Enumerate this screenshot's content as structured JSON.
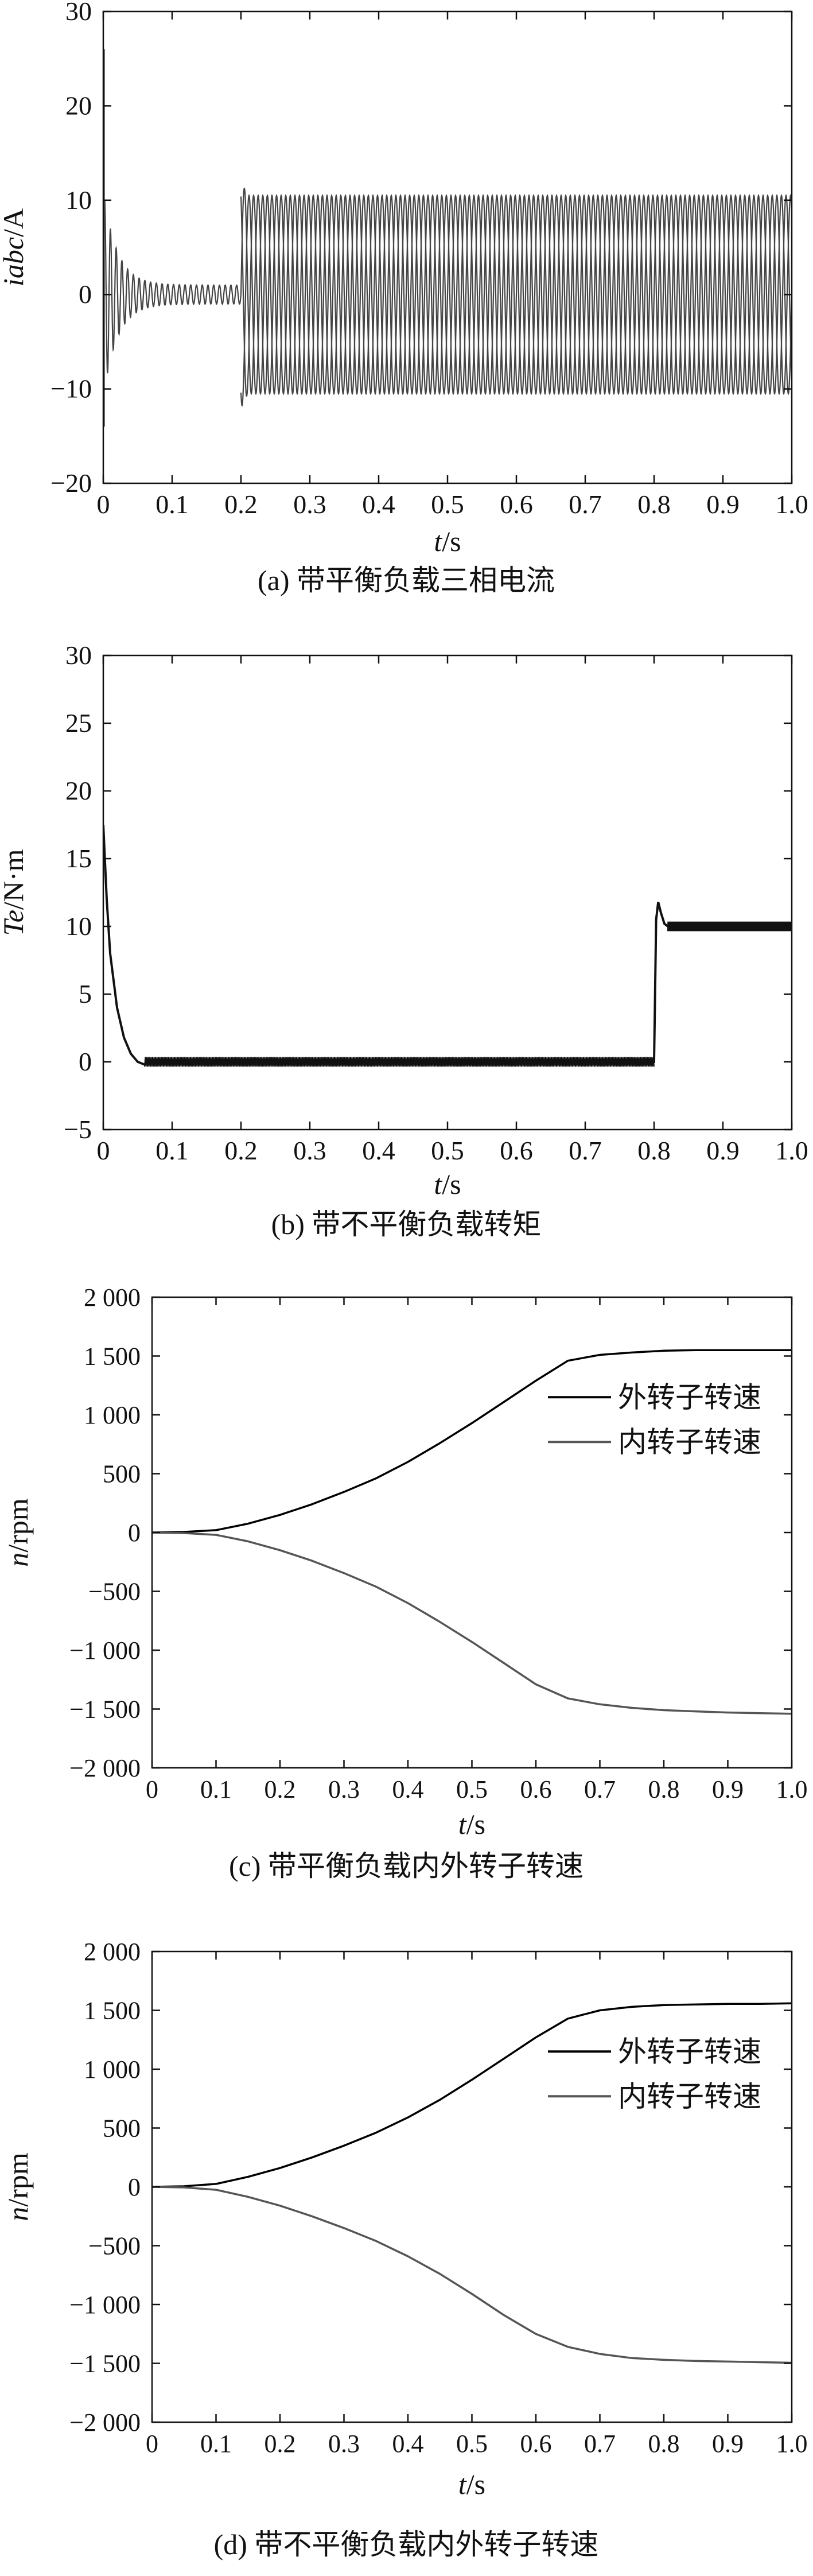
{
  "chart_data": [
    {
      "id": "a",
      "type": "line",
      "caption": "(a) 带平衡负载三相电流",
      "xlabel_var": "t",
      "xlabel_unit": "/s",
      "ylabel_var": "iabc",
      "ylabel_unit": "/A",
      "xlim": [
        0,
        1.0
      ],
      "ylim": [
        -20,
        30
      ],
      "xticks": [
        0,
        0.1,
        0.2,
        0.3,
        0.4,
        0.5,
        0.6,
        0.7,
        0.8,
        0.9,
        1.0
      ],
      "xtick_labels": [
        "0",
        "0.1",
        "0.2",
        "0.3",
        "0.4",
        "0.5",
        "0.6",
        "0.7",
        "0.8",
        "0.9",
        "1.0"
      ],
      "yticks": [
        -20,
        -10,
        0,
        10,
        20,
        30
      ],
      "ytick_labels": [
        "−20",
        "−10",
        "0",
        "10",
        "20",
        "30"
      ],
      "grid": false,
      "color": "#444444",
      "series": [
        {
          "kind": "oscillation",
          "segments": [
            {
              "x0": 0.0,
              "x1": 0.2,
              "amplitude_start": 10.0,
              "amplitude_end": 1.0,
              "decay_to": 0.02
            },
            {
              "x0": 0.2,
              "x1": 1.0,
              "amplitude_start": 10.5,
              "amplitude_end": 10.5,
              "overshoot": 12.0
            }
          ],
          "start_spike": [
            -14,
            26
          ],
          "frequency_hz": 120
        }
      ]
    },
    {
      "id": "b",
      "type": "line",
      "caption": "(b) 带不平衡负载转矩",
      "xlabel_var": "t",
      "xlabel_unit": "/s",
      "ylabel_var": "Te",
      "ylabel_unit": "/N·m",
      "xlim": [
        0,
        1.0
      ],
      "ylim": [
        -5,
        30
      ],
      "xticks": [
        0,
        0.1,
        0.2,
        0.3,
        0.4,
        0.5,
        0.6,
        0.7,
        0.8,
        0.9,
        1.0
      ],
      "xtick_labels": [
        "0",
        "0.1",
        "0.2",
        "0.3",
        "0.4",
        "0.5",
        "0.6",
        "0.7",
        "0.8",
        "0.9",
        "1.0"
      ],
      "yticks": [
        -5,
        0,
        5,
        10,
        15,
        20,
        25,
        30
      ],
      "ytick_labels": [
        "−5",
        "0",
        "5",
        "10",
        "15",
        "20",
        "25",
        "30"
      ],
      "grid": false,
      "color": "#111111",
      "series": [
        {
          "kind": "torque",
          "points": [
            [
              0.0,
              17.5
            ],
            [
              0.005,
              12.0
            ],
            [
              0.01,
              8.0
            ],
            [
              0.02,
              4.0
            ],
            [
              0.03,
              1.8
            ],
            [
              0.04,
              0.6
            ],
            [
              0.05,
              0.0
            ],
            [
              0.06,
              -0.2
            ],
            [
              0.07,
              0.0
            ],
            [
              0.8,
              0.0
            ],
            [
              0.803,
              10.5
            ],
            [
              0.806,
              11.8
            ],
            [
              0.81,
              11.0
            ],
            [
              0.815,
              10.2
            ],
            [
              0.82,
              10.0
            ],
            [
              1.0,
              10.0
            ]
          ],
          "ripple": 0.35
        }
      ]
    },
    {
      "id": "c",
      "type": "line",
      "caption": "(c) 带平衡负载内外转子转速",
      "xlabel_var": "t",
      "xlabel_unit": "/s",
      "ylabel_var": "n",
      "ylabel_unit": "/rpm",
      "xlim": [
        0,
        1.0
      ],
      "ylim": [
        -2000,
        2000
      ],
      "xticks": [
        0,
        0.1,
        0.2,
        0.3,
        0.4,
        0.5,
        0.6,
        0.7,
        0.8,
        0.9,
        1.0
      ],
      "xtick_labels": [
        "0",
        "0.1",
        "0.2",
        "0.3",
        "0.4",
        "0.5",
        "0.6",
        "0.7",
        "0.8",
        "0.9",
        "1.0"
      ],
      "yticks": [
        -2000,
        -1500,
        -1000,
        -500,
        0,
        500,
        1000,
        1500,
        2000
      ],
      "ytick_labels": [
        "−2 000",
        "−1 500",
        "−1 000",
        "−500",
        "0",
        "500",
        "1 000",
        "1 500",
        "2 000"
      ],
      "grid": false,
      "legend_position": "top-right",
      "series": [
        {
          "name": "外转子转速",
          "color": "#000000",
          "x": [
            0,
            0.05,
            0.1,
            0.15,
            0.2,
            0.25,
            0.3,
            0.35,
            0.4,
            0.45,
            0.5,
            0.55,
            0.6,
            0.65,
            0.7,
            0.75,
            0.8,
            0.85,
            0.9,
            0.95,
            1.0
          ],
          "y": [
            0,
            5,
            20,
            75,
            150,
            240,
            345,
            460,
            600,
            760,
            930,
            1110,
            1290,
            1460,
            1510,
            1530,
            1545,
            1550,
            1550,
            1550,
            1550
          ]
        },
        {
          "name": "内转子转速",
          "color": "#555555",
          "x": [
            0,
            0.05,
            0.1,
            0.15,
            0.2,
            0.25,
            0.3,
            0.35,
            0.4,
            0.45,
            0.5,
            0.55,
            0.6,
            0.65,
            0.7,
            0.75,
            0.8,
            0.85,
            0.9,
            0.95,
            1.0
          ],
          "y": [
            0,
            -5,
            -20,
            -75,
            -150,
            -240,
            -345,
            -460,
            -600,
            -760,
            -930,
            -1110,
            -1290,
            -1410,
            -1460,
            -1490,
            -1510,
            -1520,
            -1530,
            -1535,
            -1540
          ]
        }
      ]
    },
    {
      "id": "d",
      "type": "line",
      "caption": "(d) 带不平衡负载内外转子转速",
      "xlabel_var": "t",
      "xlabel_unit": "/s",
      "ylabel_var": "n",
      "ylabel_unit": "/rpm",
      "xlim": [
        0,
        1.0
      ],
      "ylim": [
        -2000,
        2000
      ],
      "xticks": [
        0,
        0.1,
        0.2,
        0.3,
        0.4,
        0.5,
        0.6,
        0.7,
        0.8,
        0.9,
        1.0
      ],
      "xtick_labels": [
        "0",
        "0.1",
        "0.2",
        "0.3",
        "0.4",
        "0.5",
        "0.6",
        "0.7",
        "0.8",
        "0.9",
        "1.0"
      ],
      "yticks": [
        -2000,
        -1500,
        -1000,
        -500,
        0,
        500,
        1000,
        1500,
        2000
      ],
      "ytick_labels": [
        "−2 000",
        "−1 500",
        "−1 000",
        "−500",
        "0",
        "500",
        "1 000",
        "1 500",
        "2 000"
      ],
      "grid": false,
      "legend_position": "top-right",
      "series": [
        {
          "name": "外转子转速",
          "color": "#000000",
          "x": [
            0,
            0.05,
            0.1,
            0.15,
            0.2,
            0.25,
            0.3,
            0.35,
            0.4,
            0.45,
            0.5,
            0.55,
            0.6,
            0.65,
            0.7,
            0.75,
            0.8,
            0.85,
            0.9,
            0.95,
            1.0
          ],
          "y": [
            0,
            5,
            25,
            85,
            160,
            250,
            350,
            460,
            590,
            740,
            910,
            1090,
            1270,
            1430,
            1500,
            1530,
            1545,
            1550,
            1555,
            1555,
            1560
          ]
        },
        {
          "name": "内转子转速",
          "color": "#555555",
          "x": [
            0,
            0.05,
            0.1,
            0.15,
            0.2,
            0.25,
            0.3,
            0.35,
            0.4,
            0.45,
            0.5,
            0.55,
            0.6,
            0.65,
            0.7,
            0.75,
            0.8,
            0.85,
            0.9,
            0.95,
            1.0
          ],
          "y": [
            0,
            -5,
            -25,
            -85,
            -160,
            -250,
            -350,
            -460,
            -590,
            -740,
            -910,
            -1090,
            -1250,
            -1360,
            -1420,
            -1455,
            -1470,
            -1480,
            -1485,
            -1490,
            -1495
          ]
        }
      ]
    }
  ]
}
